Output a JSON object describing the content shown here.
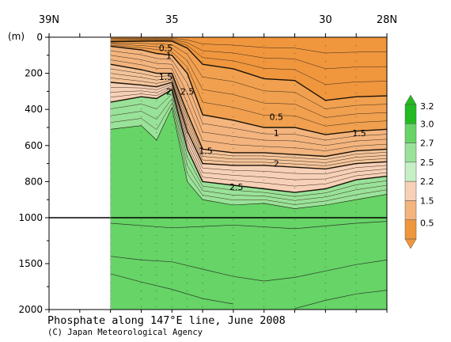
{
  "chart_data": {
    "type": "heatmap",
    "title": "Phosphate along 147°E line, June 2008",
    "credit": "(C) Japan Meteorological Agency",
    "y_unit_label": "(m)",
    "x_range": [
      39,
      28
    ],
    "x_ticks": [
      {
        "value": 39,
        "label": "39N"
      },
      {
        "value": 38,
        "label": ""
      },
      {
        "value": 37,
        "label": ""
      },
      {
        "value": 36,
        "label": ""
      },
      {
        "value": 35,
        "label": "35"
      },
      {
        "value": 34,
        "label": ""
      },
      {
        "value": 33,
        "label": ""
      },
      {
        "value": 32,
        "label": ""
      },
      {
        "value": 31,
        "label": ""
      },
      {
        "value": 30,
        "label": "30"
      },
      {
        "value": 29,
        "label": ""
      },
      {
        "value": 28,
        "label": "28N"
      }
    ],
    "station_latitudes": [
      37,
      36,
      35.5,
      35,
      34.5,
      34,
      33,
      32,
      31,
      30,
      29,
      28
    ],
    "no_data_range": [
      39,
      37
    ],
    "y_breakpoint": 1000,
    "y_ticks_upper": [
      0,
      200,
      400,
      600,
      800,
      1000
    ],
    "y_ticks_lower": [
      1500,
      2000
    ],
    "y_ticks_lower_labels": [
      "1500",
      "2000"
    ],
    "y_tick_labels": [
      "0",
      "200",
      "400",
      "600",
      "800",
      "1000"
    ],
    "colorbar": {
      "labels": [
        "3.2",
        "3.0",
        "2.7",
        "2.5",
        "2.2",
        "1.5",
        "0.5"
      ],
      "bin_colors": [
        "#22bb22",
        "#66d466",
        "#99e299",
        "#c6efc6",
        "#f7d0b8",
        "#f3b47e",
        "#f0963d"
      ],
      "arrow_top_color": "#22bb22",
      "arrow_bottom_color": "#f0963d"
    },
    "contours": [
      {
        "level": "0.5",
        "points": [
          [
            37,
            25
          ],
          [
            36,
            22
          ],
          [
            35.3,
            21
          ],
          [
            35,
            22
          ],
          [
            34.5,
            60
          ],
          [
            34,
            150
          ],
          [
            33,
            175
          ],
          [
            32,
            230
          ],
          [
            31,
            240
          ],
          [
            30,
            350
          ],
          [
            29,
            330
          ],
          [
            28,
            325
          ]
        ]
      },
      {
        "level": "1",
        "points": [
          [
            37,
            50
          ],
          [
            36,
            70
          ],
          [
            35.5,
            90
          ],
          [
            35,
            100
          ],
          [
            34.5,
            200
          ],
          [
            34,
            430
          ],
          [
            33,
            460
          ],
          [
            32,
            500
          ],
          [
            31,
            500
          ],
          [
            30,
            540
          ],
          [
            29,
            520
          ],
          [
            28,
            510
          ]
        ]
      },
      {
        "level": "1.5",
        "points": [
          [
            37,
            150
          ],
          [
            36,
            180
          ],
          [
            35.5,
            200
          ],
          [
            35,
            200
          ],
          [
            34.5,
            420
          ],
          [
            34,
            620
          ],
          [
            33,
            640
          ],
          [
            32,
            640
          ],
          [
            31,
            650
          ],
          [
            30,
            660
          ],
          [
            29,
            630
          ],
          [
            28,
            620
          ]
        ]
      },
      {
        "level": "2",
        "points": [
          [
            37,
            250
          ],
          [
            36,
            265
          ],
          [
            35.5,
            275
          ],
          [
            35,
            250
          ],
          [
            34.5,
            520
          ],
          [
            34,
            700
          ],
          [
            33,
            710
          ],
          [
            32,
            710
          ],
          [
            31,
            720
          ],
          [
            30,
            730
          ],
          [
            29,
            700
          ],
          [
            28,
            690
          ]
        ]
      },
      {
        "level": "2.5",
        "points": [
          [
            37,
            360
          ],
          [
            36,
            330
          ],
          [
            35.5,
            340
          ],
          [
            35,
            290
          ],
          [
            34.5,
            620
          ],
          [
            34,
            800
          ],
          [
            33,
            820
          ],
          [
            32,
            840
          ],
          [
            31,
            860
          ],
          [
            30,
            840
          ],
          [
            29,
            790
          ],
          [
            28,
            770
          ]
        ]
      },
      {
        "level": "2.7",
        "points": [
          [
            37,
            510
          ],
          [
            36,
            490
          ],
          [
            35.5,
            570
          ],
          [
            35,
            390
          ],
          [
            34.5,
            800
          ],
          [
            34,
            900
          ],
          [
            33,
            930
          ],
          [
            32,
            920
          ],
          [
            31,
            950
          ],
          [
            30,
            930
          ],
          [
            29,
            900
          ],
          [
            28,
            870
          ]
        ]
      }
    ],
    "contour_labels": [
      {
        "text": "0.5",
        "x": 35.2,
        "y": 60
      },
      {
        "text": "1",
        "x": 35.1,
        "y": 100
      },
      {
        "text": "1.5",
        "x": 35.2,
        "y": 220
      },
      {
        "text": "2",
        "x": 35.1,
        "y": 300
      },
      {
        "text": "2.5",
        "x": 34.5,
        "y": 300
      },
      {
        "text": "0.5",
        "x": 31.6,
        "y": 440
      },
      {
        "text": "1",
        "x": 31.6,
        "y": 530
      },
      {
        "text": "1.5",
        "x": 28.9,
        "y": 530
      },
      {
        "text": "1.5",
        "x": 33.9,
        "y": 630
      },
      {
        "text": "2",
        "x": 31.6,
        "y": 700
      },
      {
        "text": "2.5",
        "x": 32.9,
        "y": 830
      }
    ],
    "lower_contours": [
      {
        "points": [
          [
            37,
            1060
          ],
          [
            35,
            1110
          ],
          [
            33,
            1080
          ],
          [
            31,
            1120
          ],
          [
            29,
            1060
          ],
          [
            28,
            1040
          ]
        ]
      },
      {
        "points": [
          [
            37,
            1420
          ],
          [
            36,
            1460
          ],
          [
            35,
            1480
          ],
          [
            34,
            1560
          ],
          [
            33,
            1640
          ],
          [
            32,
            1690
          ],
          [
            31,
            1650
          ],
          [
            30,
            1580
          ],
          [
            29,
            1510
          ],
          [
            28,
            1460
          ]
        ]
      },
      {
        "points": [
          [
            37,
            1610
          ],
          [
            36,
            1700
          ],
          [
            35,
            1780
          ],
          [
            34,
            1880
          ],
          [
            33,
            1940
          ]
        ]
      },
      {
        "points": [
          [
            31,
            1990
          ],
          [
            30,
            1900
          ],
          [
            29,
            1830
          ],
          [
            28,
            1790
          ]
        ]
      }
    ]
  }
}
